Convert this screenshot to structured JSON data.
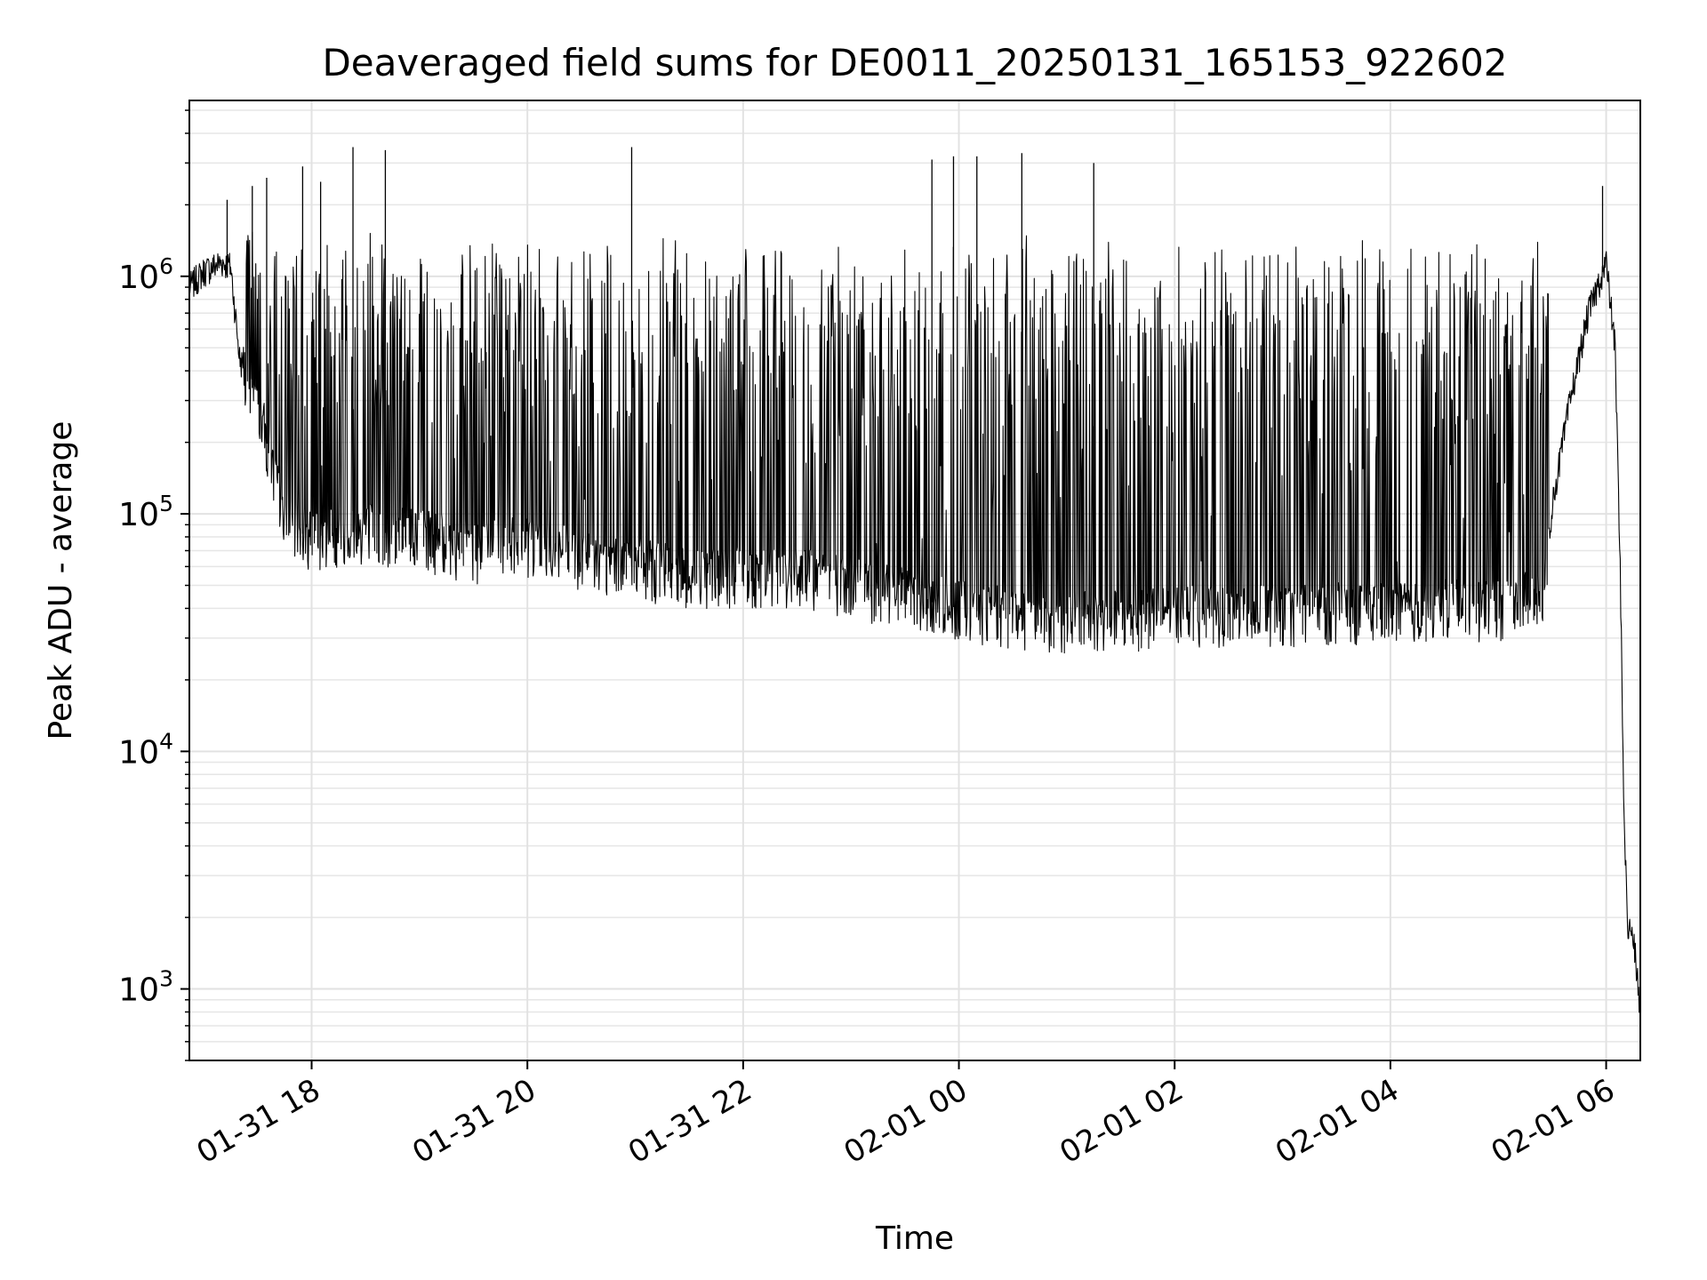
{
  "chart_data": {
    "type": "line",
    "title": "Deaveraged field sums for DE0011_20250131_165153_922602",
    "xlabel": "Time",
    "ylabel": "Peak ADU - average",
    "yscale": "log",
    "grid": true,
    "legend": "none",
    "xlim": [
      "2025-01-31 16:52",
      "2025-02-01 06:19"
    ],
    "ylim": [
      500,
      5500000
    ],
    "x_ticks": [
      "01-31 18",
      "01-31 20",
      "01-31 22",
      "02-01 00",
      "02-01 02",
      "02-01 04",
      "02-01 06"
    ],
    "y_ticks": [
      {
        "base": "10",
        "exp": "3",
        "value": 1000
      },
      {
        "base": "10",
        "exp": "4",
        "value": 10000
      },
      {
        "base": "10",
        "exp": "5",
        "value": 100000
      },
      {
        "base": "10",
        "exp": "6",
        "value": 1000000
      }
    ],
    "series": [
      {
        "color": "#000000",
        "points": [
          [
            "2025-01-31 16:52",
            900000
          ],
          [
            "2025-01-31 17:00",
            1050000
          ],
          [
            "2025-01-31 17:10",
            1150000
          ],
          [
            "2025-01-31 17:15",
            1100000
          ],
          [
            "2025-01-31 17:20",
            450000
          ],
          [
            "2025-01-31 17:30",
            300000
          ],
          [
            "2025-01-31 17:40",
            130000
          ],
          [
            "2025-01-31 17:50",
            85000
          ],
          [
            "2025-01-31 18:00",
            80000
          ],
          [
            "2025-01-31 18:30",
            85000
          ],
          [
            "2025-01-31 19:00",
            80000
          ],
          [
            "2025-01-31 19:30",
            70000
          ],
          [
            "2025-01-31 20:00",
            75000
          ],
          [
            "2025-01-31 20:30",
            65000
          ],
          [
            "2025-01-31 21:00",
            60000
          ],
          [
            "2025-01-31 21:30",
            55000
          ],
          [
            "2025-01-31 22:00",
            55000
          ],
          [
            "2025-01-31 22:30",
            55000
          ],
          [
            "2025-01-31 23:00",
            50000
          ],
          [
            "2025-01-31 23:30",
            45000
          ],
          [
            "2025-02-01 00:00",
            40000
          ],
          [
            "2025-02-01 00:30",
            37000
          ],
          [
            "2025-02-01 01:00",
            36000
          ],
          [
            "2025-02-01 01:30",
            36000
          ],
          [
            "2025-02-01 02:00",
            38000
          ],
          [
            "2025-02-01 02:30",
            38000
          ],
          [
            "2025-02-01 03:00",
            38000
          ],
          [
            "2025-02-01 03:30",
            39000
          ],
          [
            "2025-02-01 04:00",
            39000
          ],
          [
            "2025-02-01 04:30",
            40000
          ],
          [
            "2025-02-01 05:00",
            40000
          ],
          [
            "2025-02-01 05:25",
            45000
          ],
          [
            "2025-02-01 05:30",
            110000
          ],
          [
            "2025-02-01 05:40",
            300000
          ],
          [
            "2025-02-01 05:50",
            700000
          ],
          [
            "2025-02-01 06:00",
            1150000
          ],
          [
            "2025-02-01 06:05",
            500000
          ],
          [
            "2025-02-01 06:08",
            50000
          ],
          [
            "2025-02-01 06:10",
            5000
          ],
          [
            "2025-02-01 06:12",
            1800
          ],
          [
            "2025-02-01 06:15",
            1700
          ],
          [
            "2025-02-01 06:19",
            800
          ]
        ],
        "band_max": 1500000,
        "spikes": [
          [
            "2025-01-31 17:13",
            2100000
          ],
          [
            "2025-01-31 17:27",
            2400000
          ],
          [
            "2025-01-31 17:35",
            2600000
          ],
          [
            "2025-01-31 17:55",
            2900000
          ],
          [
            "2025-01-31 18:05",
            2500000
          ],
          [
            "2025-01-31 18:23",
            3500000
          ],
          [
            "2025-01-31 18:41",
            3400000
          ],
          [
            "2025-01-31 20:58",
            3500000
          ],
          [
            "2025-01-31 23:45",
            3100000
          ],
          [
            "2025-01-31 23:57",
            3200000
          ],
          [
            "2025-02-01 00:10",
            3200000
          ],
          [
            "2025-02-01 00:35",
            3300000
          ],
          [
            "2025-02-01 01:15",
            3000000
          ],
          [
            "2025-02-01 05:58",
            2400000
          ]
        ]
      }
    ]
  }
}
